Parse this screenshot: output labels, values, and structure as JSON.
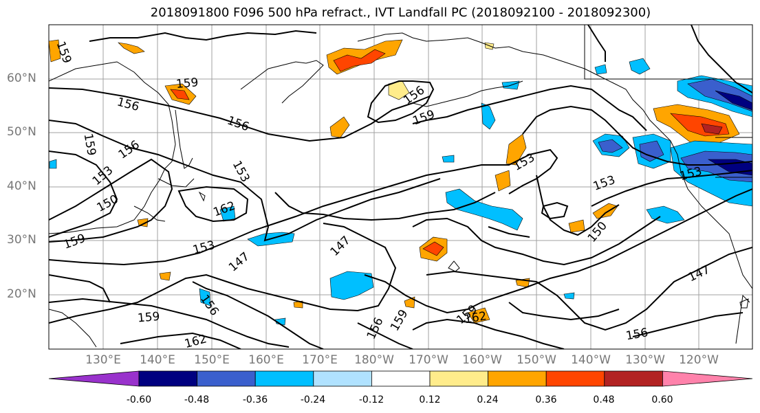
{
  "title": "2018091800 F096 500 hPa refract., IVT Landfall PC (2018092100 - 2018092300)",
  "lat_labels": [
    "60°N",
    "50°N",
    "40°N",
    "30°N",
    "20°N"
  ],
  "lon_labels": [
    "130°E",
    "140°E",
    "150°E",
    "160°E",
    "170°E",
    "180°W",
    "170°W",
    "160°W",
    "150°W",
    "140°W",
    "130°W",
    "120°W"
  ],
  "contour_labels": [
    "159",
    "159",
    "156",
    "156",
    "159",
    "156",
    "153",
    "150",
    "159",
    "156",
    "153",
    "162",
    "153",
    "147",
    "153",
    "150",
    "147",
    "147",
    "156",
    "159",
    "159",
    "162",
    "156",
    "162",
    "156",
    "159",
    "153",
    "153",
    "159"
  ],
  "colorbar": {
    "colors": [
      "#9932cc",
      "#000080",
      "#3a5fcd",
      "#00bfff",
      "#b0e2ff",
      "#ffffff",
      "#ffec8b",
      "#ffa500",
      "#ff4500",
      "#b22222",
      "#ff82ab"
    ],
    "labels": [
      "-0.60",
      "-0.48",
      "-0.36",
      "-0.24",
      "-0.12",
      "0.12",
      "0.24",
      "0.36",
      "0.48",
      "0.60"
    ]
  }
}
